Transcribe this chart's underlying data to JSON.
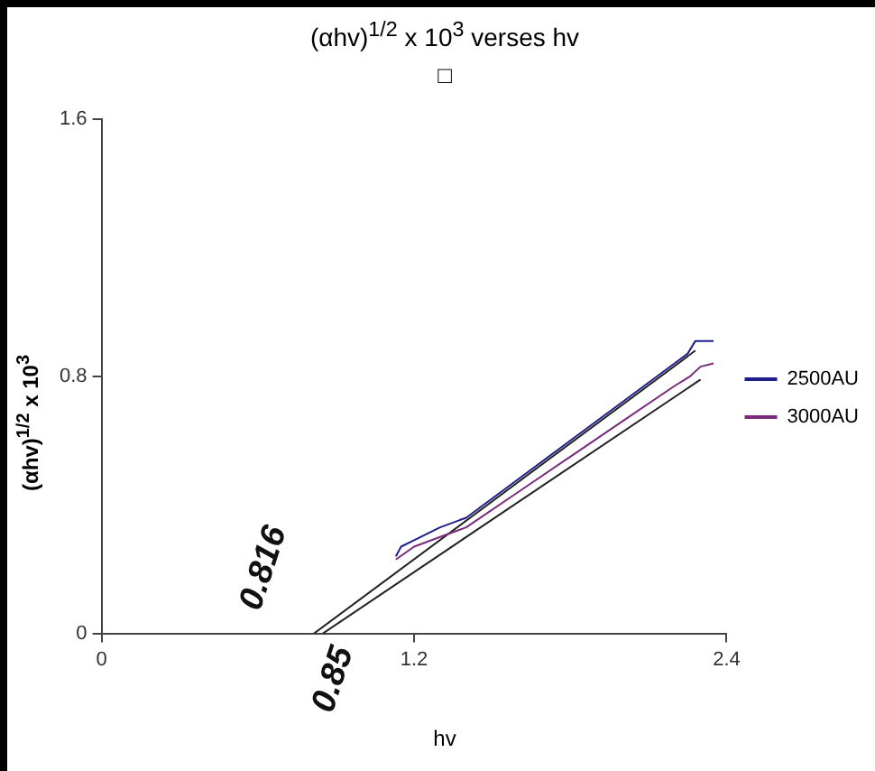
{
  "chart_data": {
    "type": "line",
    "title": "(αhv)$^{1/2}$ x 10$^{3}$ verses hv",
    "subtitle": "□",
    "xlabel": "hv",
    "ylabel": "(αhv)$^{1/2}$ x 10$^{3}$",
    "xlim": [
      0,
      2.4
    ],
    "xticks": [
      0,
      1.2,
      2.4
    ],
    "ylim": [
      0,
      1.6
    ],
    "yticks": [
      0,
      0.8,
      1.6
    ],
    "grid": false,
    "legend": "right",
    "marker": "none",
    "series": [
      {
        "name": "2500AU",
        "color": "#1f1f8a",
        "x": [
          1.13,
          1.15,
          1.2,
          1.3,
          1.4,
          1.6,
          1.8,
          2.0,
          2.2,
          2.25,
          2.28,
          2.35
        ],
        "values": [
          0.24,
          0.27,
          0.29,
          0.33,
          0.36,
          0.48,
          0.6,
          0.72,
          0.84,
          0.87,
          0.91,
          0.91
        ]
      },
      {
        "name": "3000AU",
        "color": "#7a2a7a",
        "x": [
          1.13,
          1.2,
          1.3,
          1.4,
          1.6,
          1.8,
          2.0,
          2.2,
          2.26,
          2.3,
          2.35
        ],
        "values": [
          0.23,
          0.27,
          0.3,
          0.33,
          0.44,
          0.55,
          0.66,
          0.77,
          0.8,
          0.83,
          0.84
        ]
      },
      {
        "type": "line",
        "color": "#222222",
        "x": [
          0.816,
          2.28
        ],
        "values": [
          0,
          0.88
        ]
      },
      {
        "type": "line",
        "color": "#222222",
        "x": [
          0.85,
          2.3
        ],
        "values": [
          0,
          0.79
        ]
      }
    ],
    "annotations": [
      {
        "text": "0.816",
        "x": 0.816,
        "y": 0
      },
      {
        "text": "0.85",
        "x": 0.85,
        "y": 0
      }
    ]
  }
}
